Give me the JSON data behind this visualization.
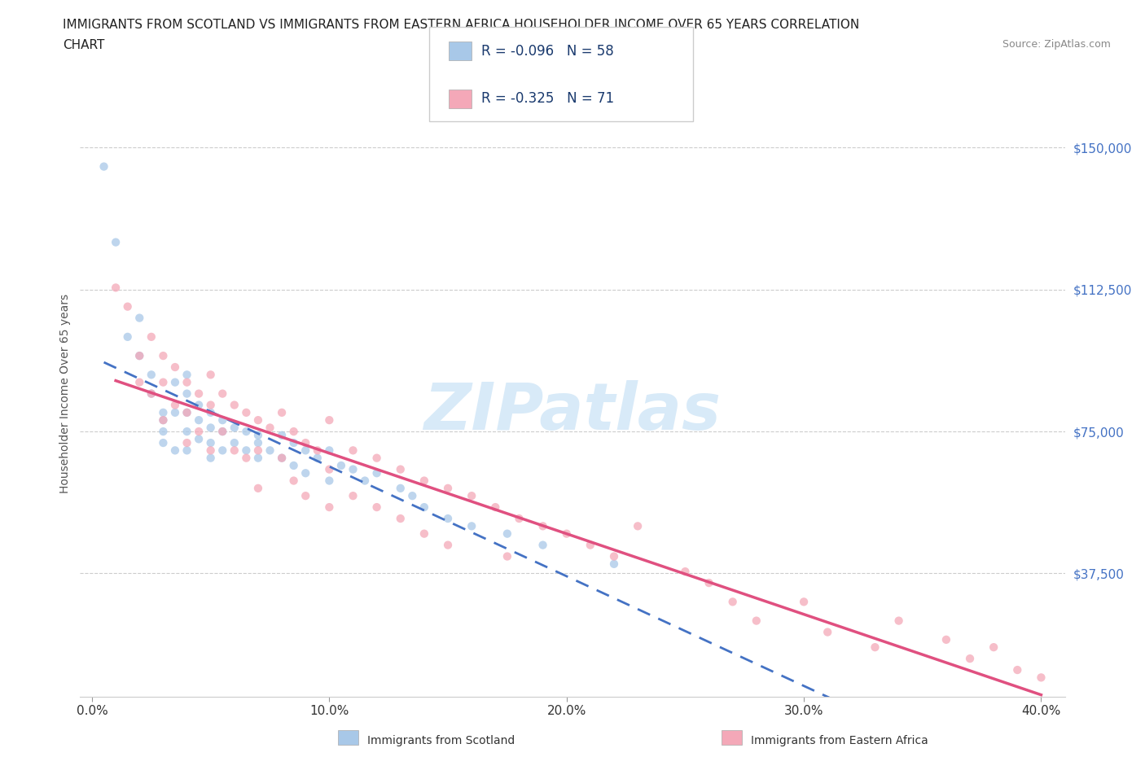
{
  "title_line1": "IMMIGRANTS FROM SCOTLAND VS IMMIGRANTS FROM EASTERN AFRICA HOUSEHOLDER INCOME OVER 65 YEARS CORRELATION",
  "title_line2": "CHART",
  "source": "Source: ZipAtlas.com",
  "xlabel_ticks": [
    "0.0%",
    "10.0%",
    "20.0%",
    "30.0%",
    "40.0%"
  ],
  "xlabel_tick_vals": [
    0.0,
    0.1,
    0.2,
    0.3,
    0.4
  ],
  "ylabel": "Householder Income Over 65 years",
  "ytick_labels": [
    "$37,500",
    "$75,000",
    "$112,500",
    "$150,000"
  ],
  "ytick_vals": [
    37500,
    75000,
    112500,
    150000
  ],
  "xlim": [
    -0.005,
    0.41
  ],
  "ylim": [
    5000,
    165000
  ],
  "watermark": "ZIPatlas",
  "legend_scotland_R": "R = -0.096",
  "legend_scotland_N": "N = 58",
  "legend_eastern_R": "R = -0.325",
  "legend_eastern_N": "N = 71",
  "scotland_color": "#a8c8e8",
  "eastern_color": "#f4a8b8",
  "scotland_line_color": "#4472c4",
  "eastern_line_color": "#e05080",
  "background_color": "#ffffff",
  "grid_color": "#cccccc",
  "scotland_x": [
    0.005,
    0.01,
    0.015,
    0.02,
    0.02,
    0.025,
    0.025,
    0.03,
    0.03,
    0.03,
    0.03,
    0.035,
    0.035,
    0.035,
    0.04,
    0.04,
    0.04,
    0.04,
    0.04,
    0.045,
    0.045,
    0.045,
    0.05,
    0.05,
    0.05,
    0.05,
    0.055,
    0.055,
    0.055,
    0.06,
    0.06,
    0.065,
    0.065,
    0.07,
    0.07,
    0.07,
    0.075,
    0.08,
    0.08,
    0.085,
    0.085,
    0.09,
    0.09,
    0.095,
    0.1,
    0.1,
    0.105,
    0.11,
    0.115,
    0.12,
    0.13,
    0.135,
    0.14,
    0.15,
    0.16,
    0.175,
    0.19,
    0.22
  ],
  "scotland_y": [
    145000,
    125000,
    100000,
    105000,
    95000,
    90000,
    85000,
    80000,
    78000,
    75000,
    72000,
    88000,
    80000,
    70000,
    90000,
    85000,
    80000,
    75000,
    70000,
    82000,
    78000,
    73000,
    80000,
    76000,
    72000,
    68000,
    78000,
    75000,
    70000,
    76000,
    72000,
    75000,
    70000,
    74000,
    72000,
    68000,
    70000,
    74000,
    68000,
    72000,
    66000,
    70000,
    64000,
    68000,
    70000,
    62000,
    66000,
    65000,
    62000,
    64000,
    60000,
    58000,
    55000,
    52000,
    50000,
    48000,
    45000,
    40000
  ],
  "eastern_x": [
    0.01,
    0.015,
    0.02,
    0.02,
    0.025,
    0.025,
    0.03,
    0.03,
    0.03,
    0.035,
    0.035,
    0.04,
    0.04,
    0.04,
    0.045,
    0.045,
    0.05,
    0.05,
    0.05,
    0.055,
    0.055,
    0.06,
    0.06,
    0.065,
    0.065,
    0.07,
    0.07,
    0.07,
    0.075,
    0.08,
    0.08,
    0.085,
    0.085,
    0.09,
    0.09,
    0.095,
    0.1,
    0.1,
    0.1,
    0.11,
    0.11,
    0.12,
    0.12,
    0.13,
    0.13,
    0.14,
    0.14,
    0.15,
    0.15,
    0.16,
    0.17,
    0.175,
    0.18,
    0.19,
    0.2,
    0.21,
    0.22,
    0.23,
    0.25,
    0.26,
    0.27,
    0.28,
    0.3,
    0.31,
    0.33,
    0.34,
    0.36,
    0.37,
    0.38,
    0.39,
    0.4
  ],
  "eastern_y": [
    113000,
    108000,
    95000,
    88000,
    100000,
    85000,
    95000,
    88000,
    78000,
    92000,
    82000,
    88000,
    80000,
    72000,
    85000,
    75000,
    90000,
    82000,
    70000,
    85000,
    75000,
    82000,
    70000,
    80000,
    68000,
    78000,
    70000,
    60000,
    76000,
    80000,
    68000,
    75000,
    62000,
    72000,
    58000,
    70000,
    78000,
    65000,
    55000,
    70000,
    58000,
    68000,
    55000,
    65000,
    52000,
    62000,
    48000,
    60000,
    45000,
    58000,
    55000,
    42000,
    52000,
    50000,
    48000,
    45000,
    42000,
    50000,
    38000,
    35000,
    30000,
    25000,
    30000,
    22000,
    18000,
    25000,
    20000,
    15000,
    18000,
    12000,
    10000
  ]
}
